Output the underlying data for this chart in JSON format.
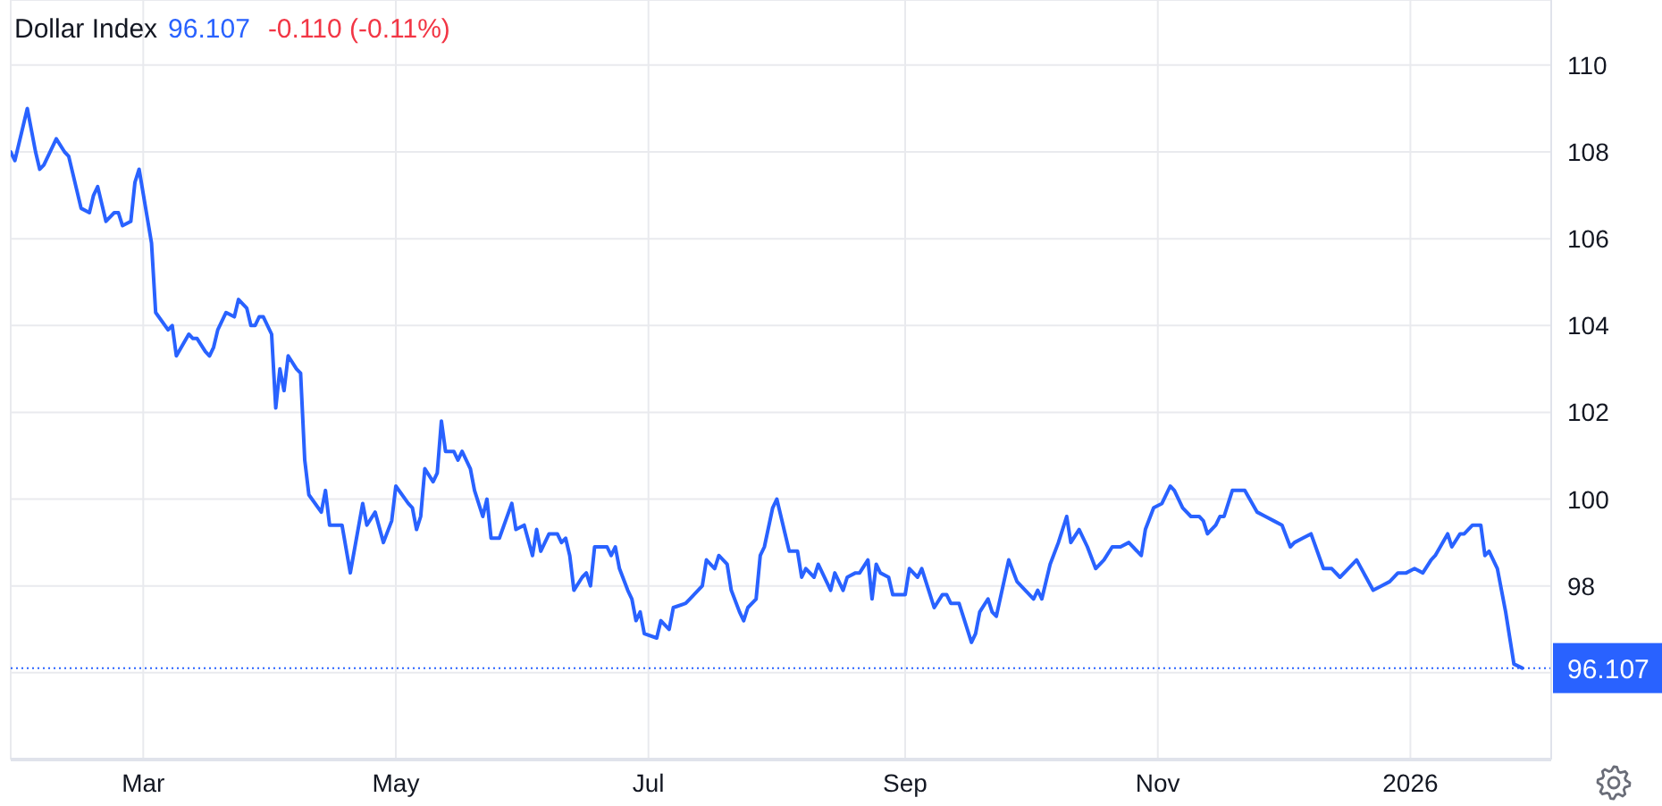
{
  "chart_data": {
    "type": "line",
    "title": "Dollar Index",
    "annotations": [
      "96.107",
      "-0.110 (-0.11%)"
    ],
    "x": [
      "2025-01-28",
      "2025-01-29",
      "2025-02-01",
      "2025-02-03",
      "2025-02-04",
      "2025-02-05",
      "2025-02-08",
      "2025-02-10",
      "2025-02-11",
      "2025-02-14",
      "2025-02-16",
      "2025-02-17",
      "2025-02-18",
      "2025-02-20",
      "2025-02-22",
      "2025-02-23",
      "2025-02-24",
      "2025-02-26",
      "2025-02-27",
      "2025-02-28",
      "2025-03-03",
      "2025-03-04",
      "2025-03-07",
      "2025-03-08",
      "2025-03-09",
      "2025-03-12",
      "2025-03-13",
      "2025-03-14",
      "2025-03-16",
      "2025-03-17",
      "2025-03-18",
      "2025-03-19",
      "2025-03-21",
      "2025-03-23",
      "2025-03-24",
      "2025-03-26",
      "2025-03-27",
      "2025-03-28",
      "2025-03-29",
      "2025-03-30",
      "2025-04-01",
      "2025-04-02",
      "2025-04-03",
      "2025-04-04",
      "2025-04-05",
      "2025-04-07",
      "2025-04-08",
      "2025-04-09",
      "2025-04-10",
      "2025-04-13",
      "2025-04-14",
      "2025-04-15",
      "2025-04-18",
      "2025-04-20",
      "2025-04-23",
      "2025-04-24",
      "2025-04-26",
      "2025-04-28",
      "2025-04-30",
      "2025-05-01",
      "2025-05-04",
      "2025-05-05",
      "2025-05-06",
      "2025-05-07",
      "2025-05-08",
      "2025-05-10",
      "2025-05-11",
      "2025-05-12",
      "2025-05-13",
      "2025-05-15",
      "2025-05-16",
      "2025-05-17",
      "2025-05-19",
      "2025-05-20",
      "2025-05-22",
      "2025-05-23",
      "2025-05-24",
      "2025-05-26",
      "2025-05-29",
      "2025-05-30",
      "2025-06-01",
      "2025-06-03",
      "2025-06-04",
      "2025-06-05",
      "2025-06-07",
      "2025-06-09",
      "2025-06-10",
      "2025-06-11",
      "2025-06-12",
      "2025-06-13",
      "2025-06-15",
      "2025-06-16",
      "2025-06-17",
      "2025-06-18",
      "2025-06-19",
      "2025-06-21",
      "2025-06-22",
      "2025-06-23",
      "2025-06-24",
      "2025-06-26",
      "2025-06-27",
      "2025-06-28",
      "2025-06-29",
      "2025-06-30",
      "2025-07-03",
      "2025-07-04",
      "2025-07-06",
      "2025-07-07",
      "2025-07-10",
      "2025-07-11",
      "2025-07-14",
      "2025-07-15",
      "2025-07-17",
      "2025-07-18",
      "2025-07-20",
      "2025-07-21",
      "2025-07-23",
      "2025-07-24",
      "2025-07-25",
      "2025-07-27",
      "2025-07-28",
      "2025-07-29",
      "2025-07-31",
      "2025-08-01",
      "2025-08-03",
      "2025-08-04",
      "2025-08-06",
      "2025-08-07",
      "2025-08-08",
      "2025-08-10",
      "2025-08-11",
      "2025-08-13",
      "2025-08-14",
      "2025-08-15",
      "2025-08-17",
      "2025-08-18",
      "2025-08-20",
      "2025-08-21",
      "2025-08-23",
      "2025-08-24",
      "2025-08-25",
      "2025-08-26",
      "2025-08-28",
      "2025-08-29",
      "2025-09-01",
      "2025-09-02",
      "2025-09-04",
      "2025-09-05",
      "2025-09-07",
      "2025-09-08",
      "2025-09-10",
      "2025-09-11",
      "2025-09-12",
      "2025-09-14",
      "2025-09-15",
      "2025-09-17",
      "2025-09-18",
      "2025-09-19",
      "2025-09-21",
      "2025-09-22",
      "2025-09-23",
      "2025-09-26",
      "2025-09-28",
      "2025-09-30",
      "2025-10-02",
      "2025-10-03",
      "2025-10-04",
      "2025-10-06",
      "2025-10-08",
      "2025-10-10",
      "2025-10-11",
      "2025-10-13",
      "2025-10-15",
      "2025-10-17",
      "2025-10-19",
      "2025-10-21",
      "2025-10-23",
      "2025-10-25",
      "2025-10-28",
      "2025-10-29",
      "2025-10-31",
      "2025-11-02",
      "2025-11-04",
      "2025-11-05",
      "2025-11-07",
      "2025-11-09",
      "2025-11-11",
      "2025-11-12",
      "2025-11-13",
      "2025-11-15",
      "2025-11-16",
      "2025-11-17",
      "2025-11-19",
      "2025-11-20",
      "2025-11-22",
      "2025-11-25",
      "2025-11-27",
      "2025-11-29",
      "2025-12-01",
      "2025-12-03",
      "2025-12-04",
      "2025-12-06",
      "2025-12-08",
      "2025-12-11",
      "2025-12-13",
      "2025-12-15",
      "2025-12-17",
      "2025-12-19",
      "2025-12-23",
      "2025-12-25",
      "2025-12-27",
      "2025-12-29",
      "2025-12-31",
      "2026-01-02",
      "2026-01-04",
      "2026-01-06",
      "2026-01-07",
      "2026-01-10",
      "2026-01-11",
      "2026-01-13",
      "2026-01-14",
      "2026-01-16",
      "2026-01-18",
      "2026-01-19",
      "2026-01-20",
      "2026-01-22",
      "2026-01-24",
      "2026-01-26",
      "2026-01-28"
    ],
    "values": [
      108.0,
      107.8,
      109.0,
      108.0,
      107.6,
      107.7,
      108.3,
      108.0,
      107.9,
      106.7,
      106.6,
      107.0,
      107.2,
      106.4,
      106.6,
      106.6,
      106.3,
      106.4,
      107.3,
      107.6,
      105.9,
      104.3,
      103.9,
      104.0,
      103.3,
      103.8,
      103.7,
      103.7,
      103.4,
      103.3,
      103.5,
      103.9,
      104.3,
      104.2,
      104.6,
      104.4,
      104.0,
      104.0,
      104.2,
      104.2,
      103.8,
      102.1,
      103.0,
      102.5,
      103.3,
      103.0,
      102.9,
      100.9,
      100.1,
      99.7,
      100.2,
      99.4,
      99.4,
      98.3,
      99.9,
      99.4,
      99.7,
      99.0,
      99.5,
      100.3,
      99.9,
      99.8,
      99.3,
      99.6,
      100.7,
      100.4,
      100.6,
      101.8,
      101.1,
      101.1,
      100.9,
      101.1,
      100.7,
      100.2,
      99.6,
      100.0,
      99.1,
      99.1,
      99.9,
      99.3,
      99.4,
      98.7,
      99.3,
      98.8,
      99.2,
      99.2,
      99.0,
      99.1,
      98.7,
      97.9,
      98.2,
      98.3,
      98.0,
      98.9,
      98.9,
      98.9,
      98.7,
      98.9,
      98.4,
      97.9,
      97.7,
      97.2,
      97.4,
      96.9,
      96.8,
      97.2,
      97.0,
      97.5,
      97.6,
      97.7,
      98.0,
      98.6,
      98.4,
      98.7,
      98.5,
      97.9,
      97.4,
      97.2,
      97.5,
      97.7,
      98.7,
      98.9,
      99.8,
      100.0,
      99.2,
      98.8,
      98.8,
      98.2,
      98.4,
      98.2,
      98.5,
      98.1,
      97.9,
      98.3,
      97.9,
      98.2,
      98.3,
      98.3,
      98.6,
      97.7,
      98.5,
      98.3,
      98.2,
      97.8,
      97.8,
      98.4,
      98.2,
      98.4,
      97.8,
      97.5,
      97.8,
      97.8,
      97.6,
      97.6,
      97.3,
      96.7,
      96.9,
      97.4,
      97.7,
      97.4,
      97.3,
      98.6,
      98.1,
      97.9,
      97.7,
      97.9,
      97.7,
      98.5,
      99.0,
      99.6,
      99.0,
      99.3,
      98.9,
      98.4,
      98.6,
      98.9,
      98.9,
      99.0,
      98.7,
      99.3,
      99.8,
      99.9,
      100.3,
      100.2,
      99.8,
      99.6,
      99.6,
      99.5,
      99.2,
      99.4,
      99.6,
      99.6,
      100.2,
      100.2,
      100.2,
      99.7,
      99.6,
      99.5,
      99.4,
      98.9,
      99.0,
      99.1,
      99.2,
      98.4,
      98.4,
      98.2,
      98.4,
      98.6,
      97.9,
      98.0,
      98.1,
      98.3,
      98.3,
      98.4,
      98.3,
      98.6,
      98.7,
      99.2,
      98.9,
      99.2,
      99.2,
      99.4,
      99.4,
      98.7,
      98.8,
      98.4,
      97.4,
      96.2,
      96.107
    ],
    "color": "#2962ff",
    "marker": "none",
    "line_style": "solid",
    "xlim": [
      "2025-01-28",
      "2026-02-04"
    ],
    "xticks": [
      {
        "value": "2025-03-01",
        "label": "Mar"
      },
      {
        "value": "2025-05-01",
        "label": "May"
      },
      {
        "value": "2025-07-01",
        "label": "Jul"
      },
      {
        "value": "2025-09-01",
        "label": "Sep"
      },
      {
        "value": "2025-11-01",
        "label": "Nov"
      },
      {
        "value": "2026-01-01",
        "label": "2026"
      }
    ],
    "ylim": [
      94,
      111.5
    ],
    "yticks": [
      {
        "value": 96,
        "label": null
      },
      98,
      100,
      102,
      104,
      106,
      108,
      110
    ],
    "ref_lines": [
      {
        "axis": "y",
        "value": 96.107,
        "label": "96.107",
        "color": "#2962ff",
        "line_style": "dotted"
      }
    ],
    "grid": true
  }
}
